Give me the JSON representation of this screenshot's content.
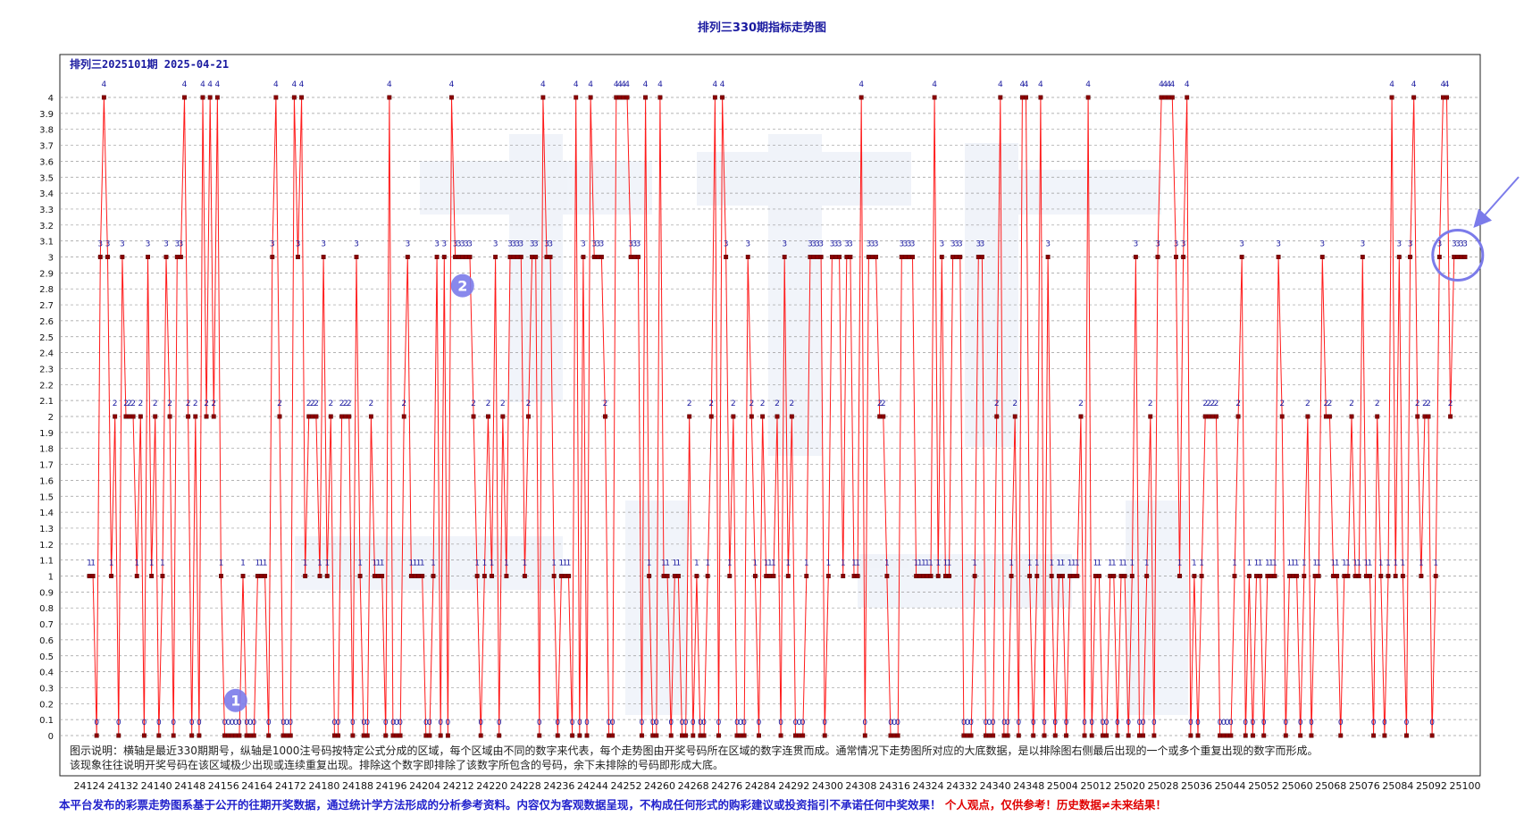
{
  "page": {
    "title": "排列三330期指标走势图",
    "note_line1": "图示说明：横轴是最近330期期号，纵轴是1000注号码按特定公式分成的区域，每个区域由不同的数字来代表，每个走势图由开奖号码所在区域的数字连贯而成。通常情况下走势图所对应的大底数据，是以排除图右侧最后出现的一个或多个重复出现的数字而形成。",
    "note_line2": "该现象往往说明开奖号码在该区域极少出现或连续重复出现。排除这个数字即排除了该数字所包含的号码，余下未排除的号码即形成大底。",
    "footer_disclaimer": "本平台发布的彩票走势图系基于公开的往期开奖数据，通过统计学方法形成的分析参考资料。内容仅为客观数据呈现，不构成任何形式的购彩建议或投资指引不承诺任何中奖效果！",
    "footer_warning": "个人观点，仅供参考！历史数据≠未来结果！"
  },
  "colors": {
    "line": "#ff1a1a",
    "marker": "#8b0000",
    "point_label": "#1a1aa0",
    "grid": "#9a9a9a",
    "annotation": "#7b7bea",
    "title": "#1a1aa0"
  },
  "chart_data": {
    "type": "line",
    "title": "排列三330期指标走势图",
    "subtitle": "排列三2025101期 2025-04-21",
    "x_tick_labels": [
      "24124",
      "24132",
      "24140",
      "24148",
      "24156",
      "24164",
      "24172",
      "24180",
      "24188",
      "24196",
      "24204",
      "24212",
      "24220",
      "24228",
      "24236",
      "24244",
      "24252",
      "24260",
      "24268",
      "24276",
      "24284",
      "24292",
      "24300",
      "24308",
      "24316",
      "24324",
      "24332",
      "24340",
      "24348",
      "25004",
      "25012",
      "25020",
      "25028",
      "25036",
      "25044",
      "25052",
      "25060",
      "25068",
      "25076",
      "25084",
      "25092",
      "25100"
    ],
    "ylim": [
      0,
      4
    ],
    "y_tick_step": 0.1,
    "y_tick_labels": [
      "0",
      "0.1",
      "0.2",
      "0.3",
      "0.4",
      "0.5",
      "0.6",
      "0.7",
      "0.8",
      "0.9",
      "1",
      "1.1",
      "1.2",
      "1.3",
      "1.4",
      "1.5",
      "1.6",
      "1.7",
      "1.8",
      "1.9",
      "2",
      "2.1",
      "2.2",
      "2.3",
      "2.4",
      "2.5",
      "2.6",
      "2.7",
      "2.8",
      "2.9",
      "3",
      "3.1",
      "3.2",
      "3.3",
      "3.4",
      "3.5",
      "3.6",
      "3.7",
      "3.8",
      "3.9",
      "4"
    ],
    "grid": true,
    "series": [
      {
        "values": [
          1,
          1,
          0,
          3,
          4,
          3,
          1,
          2,
          0,
          3,
          2,
          2,
          2,
          1,
          2,
          0,
          3,
          1,
          2,
          0,
          1,
          3,
          2,
          0,
          3,
          3,
          4,
          2,
          0,
          2,
          0,
          4,
          2,
          4,
          2,
          4,
          1,
          0,
          0,
          0,
          0,
          0,
          1,
          0,
          0,
          0,
          1,
          1,
          1,
          0,
          3,
          4,
          2,
          0,
          0,
          0,
          4,
          3,
          4,
          1,
          2,
          2,
          2,
          1,
          3,
          1,
          2,
          0,
          0,
          2,
          2,
          2,
          0,
          3,
          1,
          0,
          0,
          2,
          1,
          1,
          1,
          0,
          4,
          0,
          0,
          0,
          2,
          3,
          1,
          1,
          1,
          1,
          0,
          0,
          1,
          3,
          0,
          3,
          0,
          4,
          3,
          3,
          3,
          3,
          3,
          2,
          1,
          0,
          1,
          2,
          1,
          3,
          0,
          2,
          1,
          3,
          3,
          3,
          3,
          1,
          2,
          3,
          3,
          0,
          4,
          3,
          3,
          1,
          0,
          1,
          1,
          1,
          0,
          4,
          0,
          3,
          0,
          4,
          3,
          3,
          3,
          2,
          0,
          0,
          4,
          4,
          4,
          4,
          3,
          3,
          3,
          0,
          4,
          1,
          0,
          0,
          4,
          1,
          1,
          0,
          1,
          1,
          0,
          0,
          2,
          0,
          1,
          0,
          0,
          1,
          2,
          4,
          0,
          4,
          3,
          1,
          2,
          0,
          0,
          0,
          3,
          2,
          1,
          0,
          2,
          1,
          1,
          1,
          2,
          0,
          3,
          1,
          2,
          0,
          0,
          0,
          1,
          3,
          3,
          3,
          3,
          0,
          1,
          3,
          3,
          3,
          1,
          3,
          3,
          1,
          1,
          4,
          0,
          3,
          3,
          3,
          2,
          2,
          1,
          0,
          0,
          0,
          3,
          3,
          3,
          3,
          1,
          1,
          1,
          1,
          1,
          4,
          1,
          3,
          1,
          1,
          3,
          3,
          3,
          0,
          0,
          0,
          1,
          3,
          3,
          0,
          0,
          0,
          2,
          4,
          0,
          0,
          1,
          2,
          0,
          4,
          4,
          1,
          0,
          1,
          4,
          0,
          3,
          1,
          0,
          1,
          1,
          0,
          1,
          1,
          1,
          2,
          0,
          4,
          0,
          1,
          1,
          0,
          0,
          1,
          1,
          0,
          1,
          1,
          0,
          1,
          3,
          0,
          0,
          1,
          2,
          0,
          3,
          4,
          4,
          4,
          4,
          3,
          1,
          3,
          4,
          0,
          1,
          0,
          1,
          2,
          2,
          2,
          2,
          0,
          0,
          0,
          0,
          1,
          2,
          3,
          0,
          1,
          0,
          1,
          1,
          0,
          1,
          1,
          1,
          3,
          2,
          0,
          1,
          1,
          1,
          0,
          1,
          2,
          0,
          1,
          1,
          3,
          2,
          2,
          1,
          1,
          0,
          1,
          1,
          2,
          1,
          1,
          3,
          1,
          1,
          0,
          2,
          1,
          0,
          1,
          4,
          1,
          3,
          1,
          0,
          3,
          4,
          2,
          1,
          2,
          2,
          0,
          1,
          3,
          4,
          4,
          2,
          3,
          3,
          3,
          3
        ]
      }
    ],
    "annotations": [
      {
        "type": "badge",
        "text": "1"
      },
      {
        "type": "badge",
        "text": "2"
      },
      {
        "type": "circle-arrow",
        "text": ""
      }
    ]
  }
}
